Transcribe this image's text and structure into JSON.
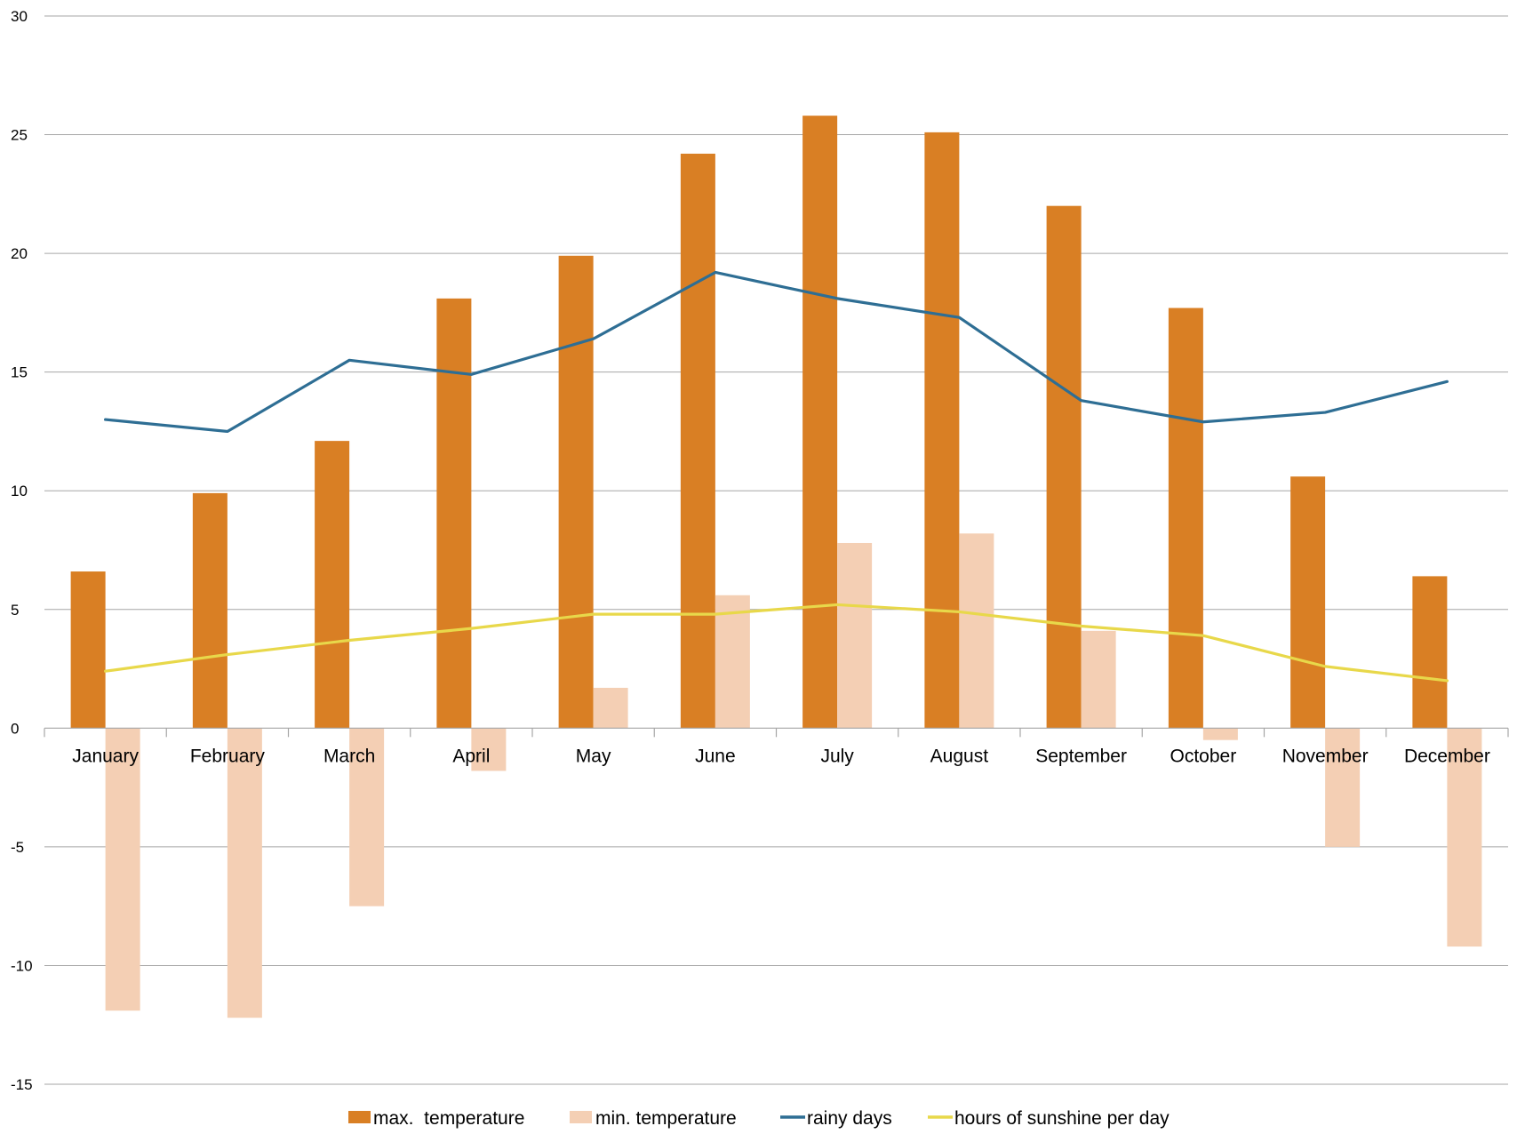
{
  "chart_data": {
    "type": "bar",
    "categories": [
      "January",
      "February",
      "March",
      "April",
      "May",
      "June",
      "July",
      "August",
      "September",
      "October",
      "November",
      "December"
    ],
    "series": [
      {
        "name": "max.  temperature",
        "type": "bar",
        "color": "#D97F24",
        "values": [
          6.6,
          9.9,
          12.1,
          18.1,
          19.9,
          24.2,
          25.8,
          25.1,
          22.0,
          17.7,
          10.6,
          6.4
        ]
      },
      {
        "name": "min. temperature",
        "type": "bar",
        "color": "#F4CFB4",
        "values": [
          -11.9,
          -12.2,
          -7.5,
          -1.8,
          1.7,
          5.6,
          7.8,
          8.2,
          4.1,
          -0.5,
          -5.0,
          -9.2
        ]
      },
      {
        "name": "rainy days",
        "type": "line",
        "color": "#2E6E94",
        "values": [
          13.0,
          12.5,
          15.5,
          14.9,
          16.4,
          19.2,
          18.1,
          17.3,
          13.8,
          12.9,
          13.3,
          14.6
        ]
      },
      {
        "name": "hours of sunshine per day",
        "type": "line",
        "color": "#E8D84A",
        "values": [
          2.4,
          3.1,
          3.7,
          4.2,
          4.8,
          4.8,
          5.2,
          4.9,
          4.3,
          3.9,
          2.6,
          2.0
        ]
      }
    ],
    "y_ticks": [
      "30",
      "25",
      "20",
      "15",
      "10",
      "5",
      "0",
      "-5",
      "-10",
      "-15"
    ],
    "ylim": [
      -15,
      30
    ],
    "grid": true,
    "legend_position": "bottom"
  }
}
